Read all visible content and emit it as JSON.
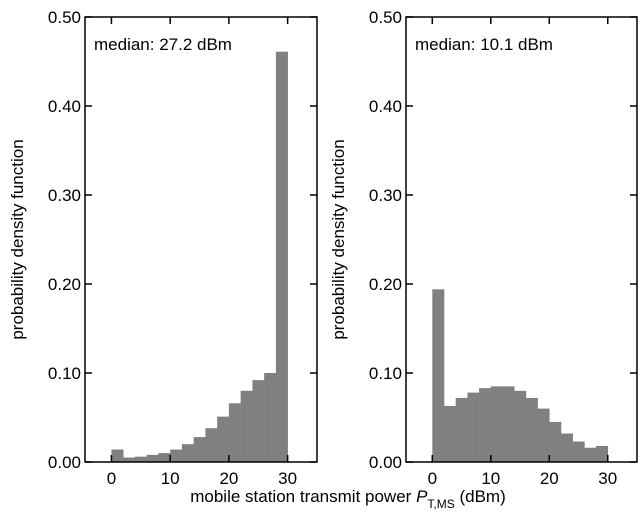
{
  "chart_data": [
    {
      "type": "bar",
      "subtype": "histogram",
      "annotation": "median: 27.2 dBm",
      "ylabel": "probability density function",
      "xlim": [
        -4.5,
        35
      ],
      "ylim": [
        0,
        0.5
      ],
      "xticks": [
        0,
        10,
        20,
        30
      ],
      "xtick_labels": [
        "0",
        "10",
        "20",
        "30"
      ],
      "yticks": [
        0,
        0.1,
        0.2,
        0.3,
        0.4,
        0.5
      ],
      "ytick_labels": [
        "0.00",
        "0.10",
        "0.20",
        "0.30",
        "0.40",
        "0.50"
      ],
      "bin_edges": [
        0,
        2,
        4,
        6,
        8,
        10,
        12,
        14,
        16,
        18,
        20,
        22,
        24,
        26,
        28,
        30
      ],
      "values": [
        0.014,
        0.005,
        0.006,
        0.008,
        0.01,
        0.014,
        0.02,
        0.028,
        0.038,
        0.051,
        0.066,
        0.08,
        0.092,
        0.1,
        0.461
      ],
      "bar_color": "#808080",
      "grid": false
    },
    {
      "type": "bar",
      "subtype": "histogram",
      "annotation": "median: 10.1 dBm",
      "ylabel": "probability density function",
      "xlim": [
        -4.5,
        35
      ],
      "ylim": [
        0,
        0.5
      ],
      "xticks": [
        0,
        10,
        20,
        30
      ],
      "xtick_labels": [
        "0",
        "10",
        "20",
        "30"
      ],
      "yticks": [
        0,
        0.1,
        0.2,
        0.3,
        0.4,
        0.5
      ],
      "ytick_labels": [
        "0.00",
        "0.10",
        "0.20",
        "0.30",
        "0.40",
        "0.50"
      ],
      "bin_edges": [
        0,
        2,
        4,
        6,
        8,
        10,
        12,
        14,
        16,
        18,
        20,
        22,
        24,
        26,
        28,
        30
      ],
      "values": [
        0.194,
        0.063,
        0.072,
        0.078,
        0.083,
        0.085,
        0.085,
        0.08,
        0.072,
        0.06,
        0.045,
        0.032,
        0.023,
        0.016,
        0.018
      ],
      "bar_color": "#808080",
      "grid": false
    }
  ],
  "shared_xlabel": {
    "prefix": "mobile station transmit power ",
    "symbol": "P",
    "subscript": "T,MS",
    "suffix": " (dBm)"
  }
}
